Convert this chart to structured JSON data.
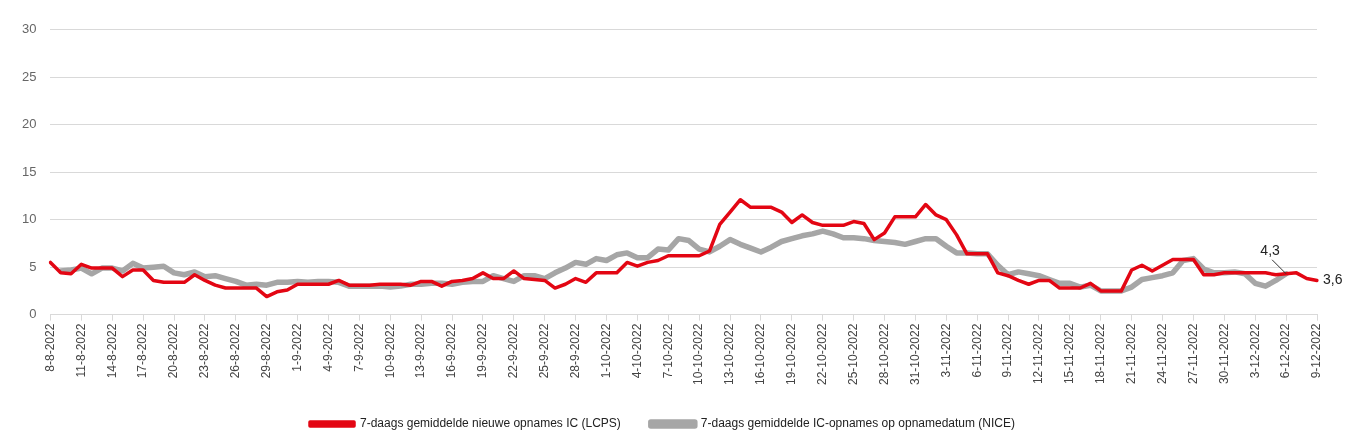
{
  "chart_data": {
    "type": "line",
    "categories": [
      "8-8-2022",
      null,
      null,
      "11-8-2022",
      null,
      null,
      "14-8-2022",
      null,
      null,
      "17-8-2022",
      null,
      null,
      "20-8-2022",
      null,
      null,
      "23-8-2022",
      null,
      null,
      "26-8-2022",
      null,
      null,
      "29-8-2022",
      null,
      null,
      "1-9-2022",
      null,
      null,
      "4-9-2022",
      null,
      null,
      "7-9-2022",
      null,
      null,
      "10-9-2022",
      null,
      null,
      "13-9-2022",
      null,
      null,
      "16-9-2022",
      null,
      null,
      "19-9-2022",
      null,
      null,
      "22-9-2022",
      null,
      null,
      "25-9-2022",
      null,
      null,
      "28-9-2022",
      null,
      null,
      "1-10-2022",
      null,
      null,
      "4-10-2022",
      null,
      null,
      "7-10-2022",
      null,
      null,
      "10-10-2022",
      null,
      null,
      "13-10-2022",
      null,
      null,
      "16-10-2022",
      null,
      null,
      "19-10-2022",
      null,
      null,
      "22-10-2022",
      null,
      null,
      "25-10-2022",
      null,
      null,
      "28-10-2022",
      null,
      null,
      "31-10-2022",
      null,
      null,
      "3-11-2022",
      null,
      null,
      "6-11-2022",
      null,
      null,
      "9-11-2022",
      null,
      null,
      "12-11-2022",
      null,
      null,
      "15-11-2022",
      null,
      null,
      "18-11-2022",
      null,
      null,
      "21-11-2022",
      null,
      null,
      "24-11-2022",
      null,
      null,
      "27-11-2022",
      null,
      null,
      "30-11-2022",
      null,
      null,
      "3-12-2022",
      null,
      null,
      "6-12-2022",
      null,
      null,
      "9-12-2022"
    ],
    "series": [
      {
        "name": "7-daags gemiddelde nieuwe opnames IC (LCPS)",
        "color": "#e30613",
        "values": [
          5.5,
          4.4,
          4.3,
          5.3,
          4.9,
          4.9,
          4.9,
          4.0,
          4.7,
          4.7,
          3.6,
          3.4,
          3.4,
          3.4,
          4.2,
          3.6,
          3.1,
          2.8,
          2.8,
          2.8,
          2.8,
          1.9,
          2.4,
          2.6,
          3.2,
          3.2,
          3.2,
          3.2,
          3.6,
          3.1,
          3.1,
          3.1,
          3.2,
          3.2,
          3.2,
          3.1,
          3.5,
          3.5,
          3.0,
          3.5,
          3.6,
          3.8,
          4.4,
          3.8,
          3.8,
          4.6,
          3.8,
          3.7,
          3.6,
          2.8,
          3.2,
          3.8,
          3.4,
          4.4,
          4.4,
          4.4,
          5.5,
          5.1,
          5.5,
          5.7,
          6.2,
          6.2,
          6.2,
          6.2,
          6.7,
          9.5,
          10.8,
          12.1,
          11.3,
          11.3,
          11.3,
          10.8,
          9.7,
          10.5,
          9.7,
          9.4,
          9.4,
          9.4,
          9.8,
          9.6,
          7.9,
          8.6,
          10.3,
          10.3,
          10.3,
          11.6,
          10.5,
          10.0,
          8.4,
          6.4,
          6.4,
          6.4,
          4.4,
          4.1,
          3.6,
          3.2,
          3.6,
          3.6,
          2.8,
          2.8,
          2.8,
          3.3,
          2.5,
          2.5,
          2.5,
          4.7,
          5.2,
          4.6,
          5.2,
          5.8,
          5.8,
          5.8,
          4.2,
          4.2,
          4.4,
          4.4,
          4.4,
          4.4,
          4.4,
          4.2,
          4.3,
          4.4,
          3.8,
          3.6
        ]
      },
      {
        "name": "7-daags gemiddelde IC-opnames op opnamedatum (NICE)",
        "color": "#a6a6a6",
        "values": [
          null,
          4.6,
          4.7,
          4.9,
          4.3,
          4.9,
          4.9,
          4.6,
          5.4,
          4.9,
          5.0,
          5.1,
          4.4,
          4.2,
          4.5,
          4.0,
          4.1,
          3.8,
          3.5,
          3.1,
          3.2,
          3.1,
          3.4,
          3.4,
          3.5,
          3.4,
          3.5,
          3.5,
          3.4,
          3.0,
          3.0,
          3.0,
          3.0,
          2.9,
          3.0,
          3.2,
          3.2,
          3.3,
          3.3,
          3.2,
          3.4,
          3.5,
          3.5,
          4.1,
          3.8,
          3.5,
          4.1,
          4.1,
          3.8,
          4.4,
          4.9,
          5.5,
          5.3,
          5.9,
          5.7,
          6.3,
          6.5,
          6.0,
          6.0,
          6.9,
          6.8,
          8.0,
          7.8,
          6.9,
          6.6,
          7.2,
          7.9,
          7.4,
          7.0,
          6.6,
          7.1,
          7.7,
          8.0,
          8.3,
          8.5,
          8.8,
          8.5,
          8.1,
          8.1,
          8.0,
          7.8,
          7.7,
          7.6,
          7.4,
          7.7,
          8.0,
          8.0,
          7.2,
          6.5,
          6.5,
          6.4,
          6.4,
          5.2,
          4.2,
          4.5,
          4.3,
          4.1,
          3.7,
          3.3,
          3.3,
          2.9,
          3.1,
          2.5,
          2.5,
          2.5,
          2.9,
          3.7,
          3.9,
          4.1,
          4.4,
          5.7,
          5.9,
          4.8,
          4.4,
          4.4,
          4.5,
          4.3,
          3.3,
          3.0,
          3.6,
          4.3,
          null,
          null,
          null
        ]
      }
    ],
    "ylim": [
      0,
      30
    ],
    "yticks": [
      0,
      5,
      10,
      15,
      20,
      25,
      30
    ],
    "grid": "y",
    "legend": "bottom",
    "marker": "none",
    "line_style": "solid",
    "annotations": [
      {
        "text": "4,3",
        "x": "6-12-2022",
        "y": 4.3
      },
      {
        "text": "3,6",
        "x": "9-12-2022",
        "y": 3.6
      }
    ]
  }
}
